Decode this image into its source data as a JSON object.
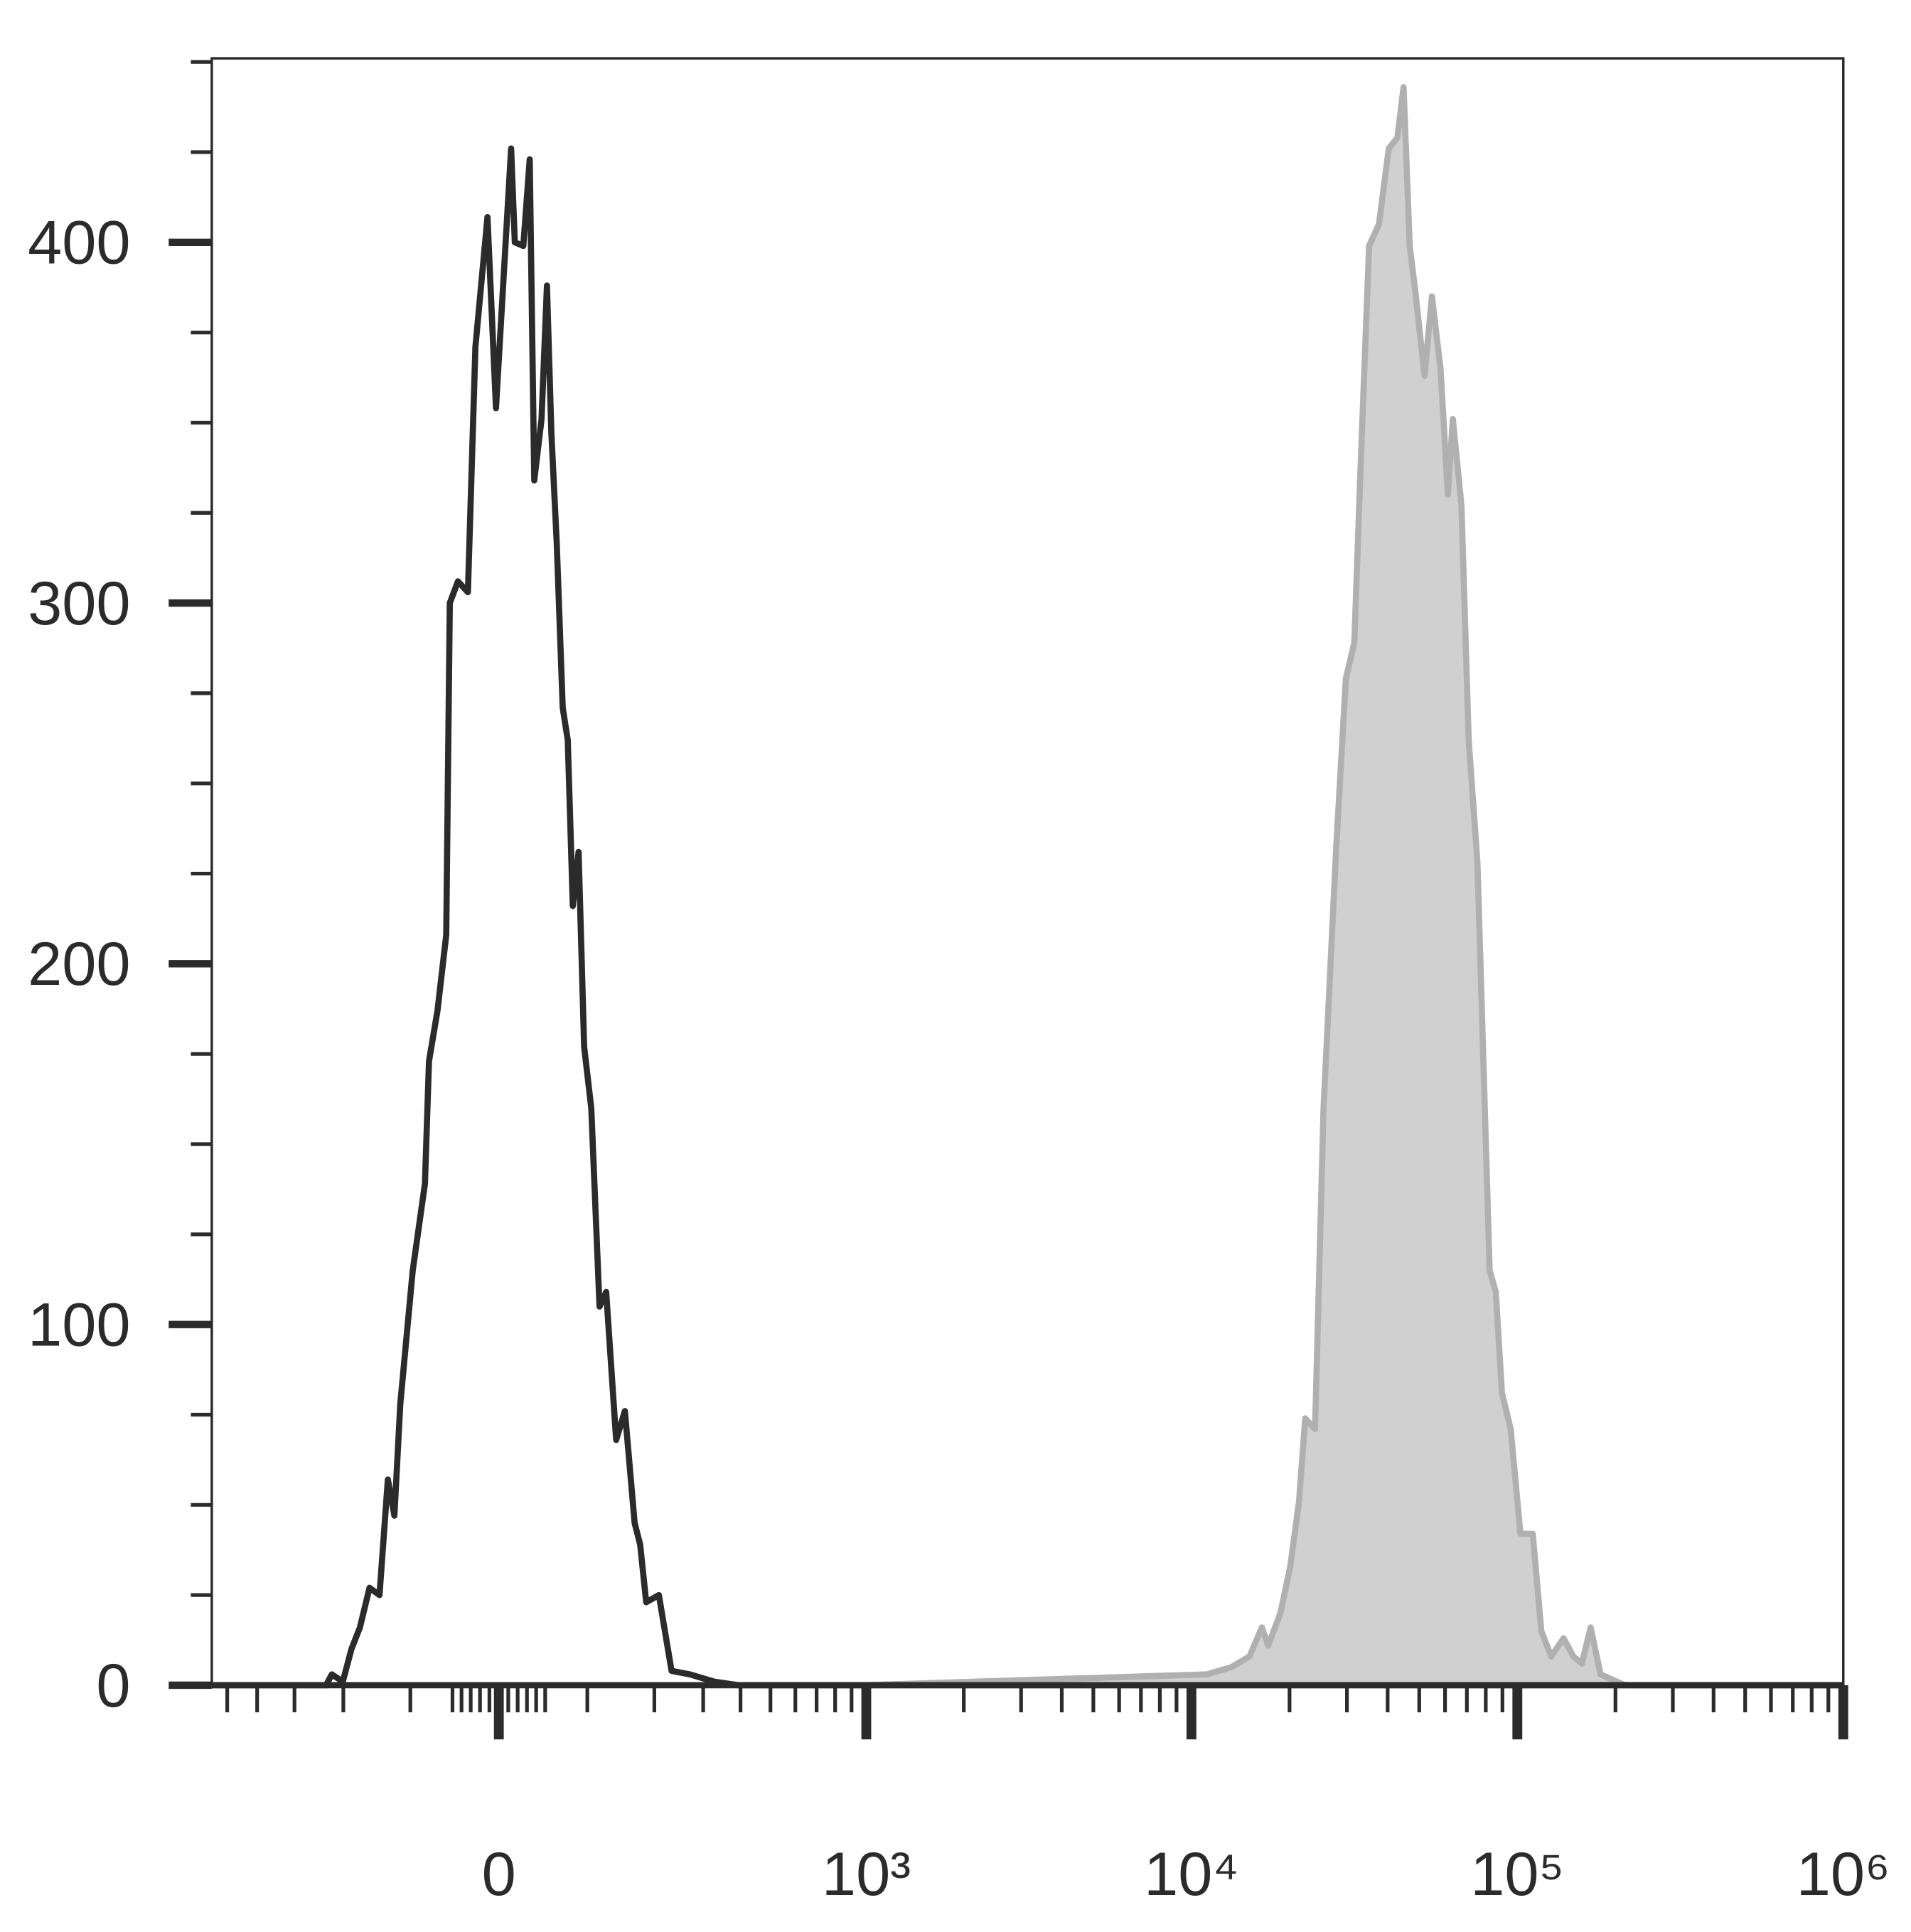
{
  "chart_data": {
    "type": "histogram-overlay",
    "xscale": "biexponential",
    "xlim": [
      -560,
      1000000
    ],
    "ylim": [
      0,
      451
    ],
    "xticks": [
      0,
      {
        "value": 1000,
        "label": "10³"
      },
      {
        "value": 10000,
        "label": "10⁴"
      },
      {
        "value": 100000,
        "label": "10⁵"
      },
      {
        "value": 1000000,
        "label": "10⁶"
      }
    ],
    "xminorticks": [
      -500,
      -400,
      -300,
      -200,
      -100,
      -50,
      -40,
      -30,
      -20,
      -10,
      10,
      20,
      30,
      40,
      50,
      100,
      200,
      300,
      400,
      500,
      600,
      700,
      800,
      900,
      2000,
      3000,
      4000,
      5000,
      6000,
      7000,
      8000,
      9000,
      20000,
      30000,
      40000,
      50000,
      60000,
      70000,
      80000,
      90000,
      200000,
      300000,
      400000,
      500000,
      600000,
      700000,
      800000,
      900000
    ],
    "yticks": [
      0,
      100,
      200,
      300,
      400
    ],
    "yminorticks": [
      25,
      50,
      75,
      125,
      150,
      175,
      225,
      250,
      275,
      325,
      350,
      375,
      425,
      450
    ],
    "series": [
      {
        "color": "#b0b0b0",
        "fill": "#d0d0d0",
        "x": [
          -560,
          969,
          11130,
          13245,
          15080,
          16450,
          17190,
          18760,
          20100,
          21380,
          22340,
          23940,
          25440,
          27760,
          29770,
          31600,
          33000,
          35100,
          37600,
          40330,
          42870,
          44760,
          46770,
          48830,
          51900,
          54670,
          58120,
          61200,
          63390,
          67350,
          70950,
          75450,
          82250,
          85890,
          89700,
          95400,
          102200,
          111500,
          118500,
          127000,
          138600,
          148500,
          157800,
          167800,
          180000,
          214000,
          1000000
        ],
        "values": [
          0,
          0,
          3,
          5,
          8,
          16,
          11,
          20,
          33,
          51,
          74,
          71,
          160,
          231,
          279,
          289,
          337,
          399,
          405,
          426,
          429,
          443,
          399,
          385,
          363,
          385,
          365,
          330,
          351,
          327,
          262,
          228,
          115,
          109,
          81,
          71,
          42,
          42,
          15,
          8,
          13,
          8,
          6,
          16,
          3,
          0,
          0
        ]
      },
      {
        "color": "#2b2b2b",
        "fill": "none",
        "x": [
          -560,
          -232,
          -221,
          -201,
          -186,
          -172,
          -157,
          -142,
          -130,
          -121,
          -113,
          -97,
          -82,
          -77,
          -67,
          -57,
          -53,
          -44,
          -33,
          -25,
          -12,
          -3,
          13,
          17,
          26,
          33,
          38,
          46,
          52,
          57,
          63,
          70,
          76,
          82,
          89,
          96,
          105,
          116,
          125,
          139,
          152,
          167,
          176,
          186,
          208,
          232,
          270,
          327,
          394,
          1000000
        ],
        "values": [
          0,
          0,
          3,
          1,
          10,
          16,
          27,
          25,
          57,
          47,
          78,
          115,
          139,
          173,
          187,
          208,
          300,
          306,
          303,
          371,
          407,
          354,
          426,
          400,
          399,
          423,
          334,
          351,
          388,
          347,
          317,
          271,
          262,
          216,
          231,
          177,
          160,
          105,
          109,
          68,
          76,
          45,
          39,
          23,
          25,
          4,
          3,
          1,
          0,
          0
        ]
      }
    ]
  }
}
